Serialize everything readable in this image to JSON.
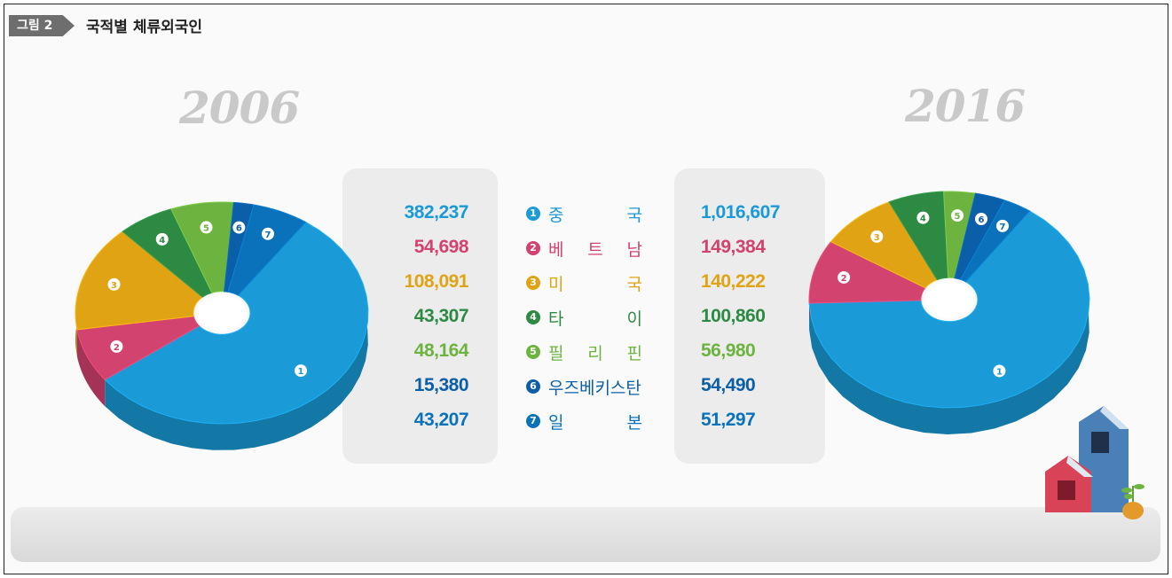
{
  "header": {
    "badge": "그림 2",
    "title": "국적별 체류외국인"
  },
  "years": {
    "left": "2006",
    "right": "2016"
  },
  "colors": {
    "1": "#1a9ad6",
    "2": "#d2436f",
    "3": "#e0a314",
    "4": "#2c8a43",
    "5": "#6db33f",
    "6": "#0b5ea8",
    "7": "#0a72bb"
  },
  "chart_data": [
    {
      "type": "pie",
      "title": "2006",
      "categories": [
        "중국",
        "베트남",
        "미국",
        "타이",
        "필리핀",
        "우즈베키스탄",
        "일본"
      ],
      "values": [
        382237,
        54698,
        108091,
        43307,
        48164,
        15380,
        43207
      ],
      "labels": [
        "382,237",
        "54,698",
        "108,091",
        "43,307",
        "48,164",
        "15,380",
        "43,207"
      ]
    },
    {
      "type": "pie",
      "title": "2016",
      "categories": [
        "중국",
        "베트남",
        "미국",
        "타이",
        "필리핀",
        "우즈베키스탄",
        "일본"
      ],
      "values": [
        1016607,
        149384,
        140222,
        100860,
        56980,
        54490,
        51297
      ],
      "labels": [
        "1,016,607",
        "149,384",
        "140,222",
        "100,860",
        "56,980",
        "54,490",
        "51,297"
      ]
    }
  ],
  "legend": [
    {
      "num": "1",
      "name": [
        "중",
        "국"
      ]
    },
    {
      "num": "2",
      "name": [
        "베",
        "트",
        "남"
      ]
    },
    {
      "num": "3",
      "name": [
        "미",
        "국"
      ]
    },
    {
      "num": "4",
      "name": [
        "타",
        "이"
      ]
    },
    {
      "num": "5",
      "name": [
        "필",
        "리",
        "핀"
      ]
    },
    {
      "num": "6",
      "name": [
        "우즈베키스탄"
      ]
    },
    {
      "num": "7",
      "name": [
        "일",
        "본"
      ]
    }
  ]
}
